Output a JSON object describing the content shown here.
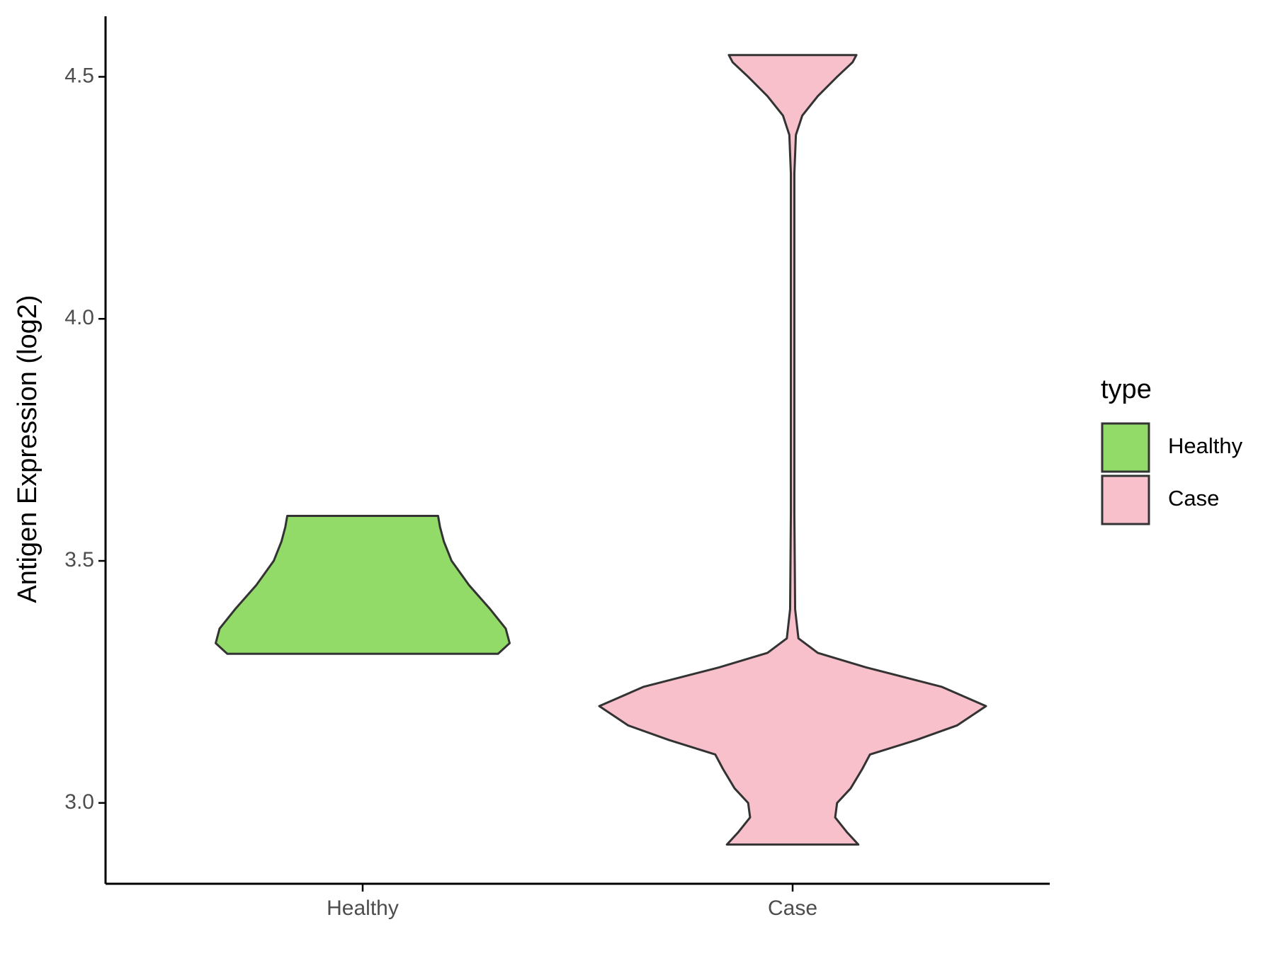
{
  "chart_data": {
    "type": "violin",
    "y_label": "Antigen Expression (log2)",
    "legend_title": "type",
    "legend_position": "right",
    "categories": [
      "Healthy",
      "Case"
    ],
    "series": [
      {
        "name": "Healthy",
        "color": "#93db69",
        "y": [
          3.308,
          3.33,
          3.36,
          3.4,
          3.45,
          3.5,
          3.54,
          3.57,
          3.593
        ],
        "density": [
          0.7,
          0.76,
          0.74,
          0.66,
          0.55,
          0.46,
          0.42,
          0.4,
          0.39
        ]
      },
      {
        "name": "Case",
        "color": "#f7c0cb",
        "y": [
          2.914,
          2.94,
          2.97,
          3.0,
          3.03,
          3.07,
          3.1,
          3.13,
          3.16,
          3.2,
          3.24,
          3.28,
          3.31,
          3.34,
          3.4,
          3.6,
          4.0,
          4.3,
          4.38,
          4.42,
          4.46,
          4.5,
          4.53,
          4.545
        ],
        "density": [
          0.34,
          0.28,
          0.22,
          0.23,
          0.3,
          0.36,
          0.4,
          0.64,
          0.85,
          1.0,
          0.77,
          0.38,
          0.13,
          0.03,
          0.013,
          0.009,
          0.009,
          0.009,
          0.017,
          0.05,
          0.13,
          0.23,
          0.31,
          0.33
        ]
      }
    ],
    "ylim": [
      2.833,
      4.625
    ],
    "yticks": [
      {
        "value": 3,
        "label": "3.0"
      },
      {
        "value": 3.5,
        "label": "3.5"
      },
      {
        "value": 4,
        "label": "4.0"
      },
      {
        "value": 4.5,
        "label": "4.5"
      }
    ]
  }
}
